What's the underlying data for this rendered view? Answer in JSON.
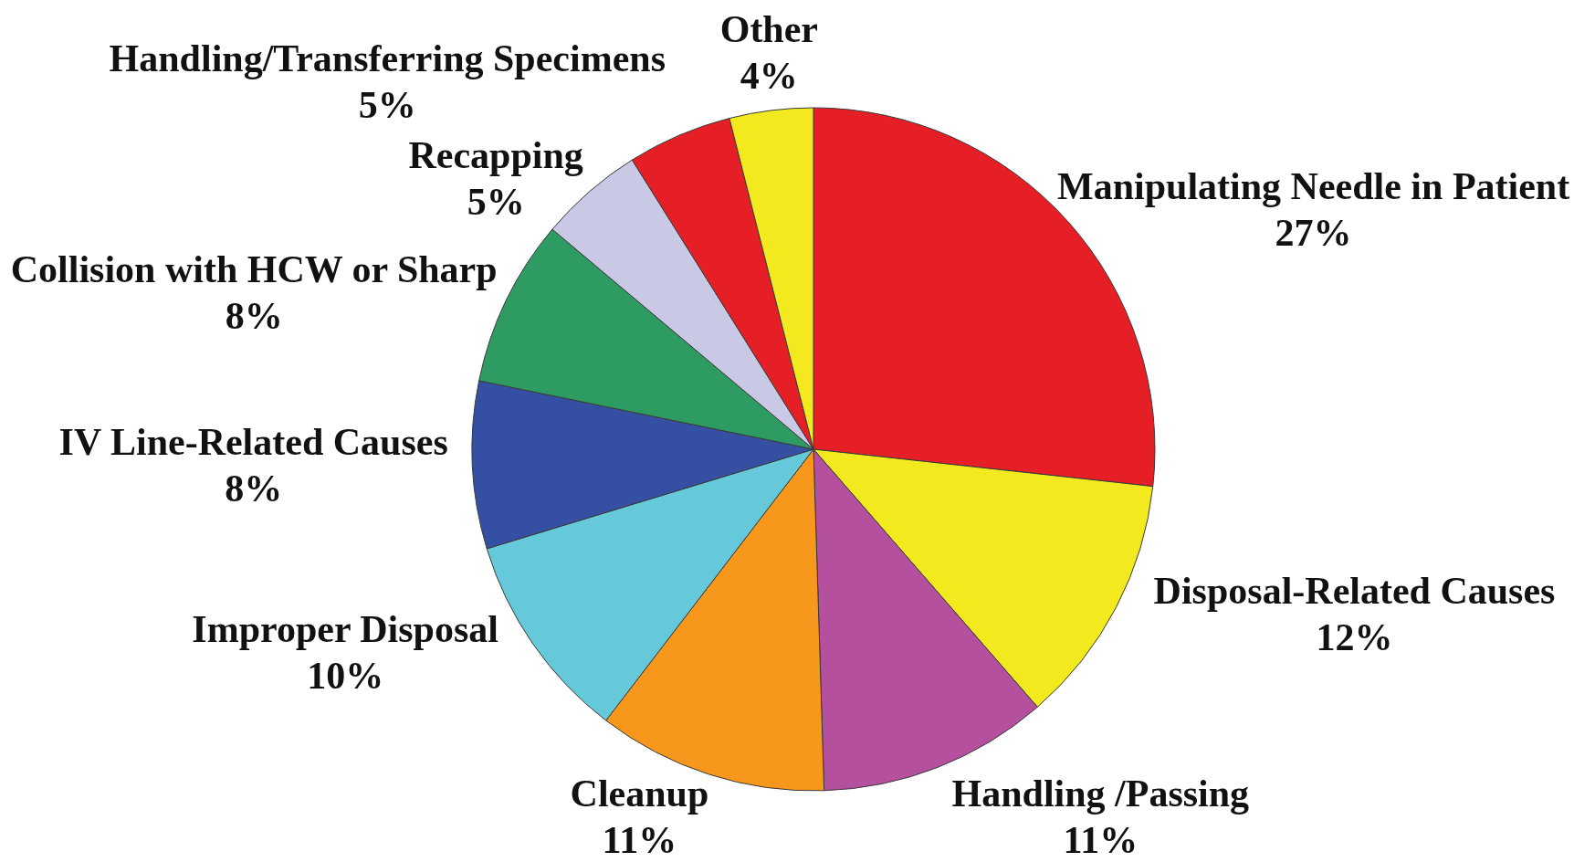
{
  "chart_data": {
    "type": "pie",
    "categories": [
      "Manipulating Needle in Patient",
      "Disposal-Related Causes",
      "Handling /Passing",
      "Cleanup",
      "Improper Disposal",
      "IV Line-Related Causes",
      "Collision with HCW or Sharp",
      "Recapping",
      "Handling/Transferring Specimens",
      "Other"
    ],
    "values": [
      27,
      12,
      11,
      11,
      10,
      8,
      8,
      5,
      5,
      4
    ],
    "value_labels": [
      "27%",
      "12%",
      "11%",
      "11%",
      "10%",
      "8%",
      "8%",
      "5%",
      "5%",
      "4%"
    ],
    "colors": [
      "#e61f26",
      "#f2ea1e",
      "#b5509f",
      "#f7981d",
      "#66c9da",
      "#3550a3",
      "#2e9b63",
      "#c9c9e6",
      "#e61f26",
      "#f2ea1e"
    ]
  }
}
